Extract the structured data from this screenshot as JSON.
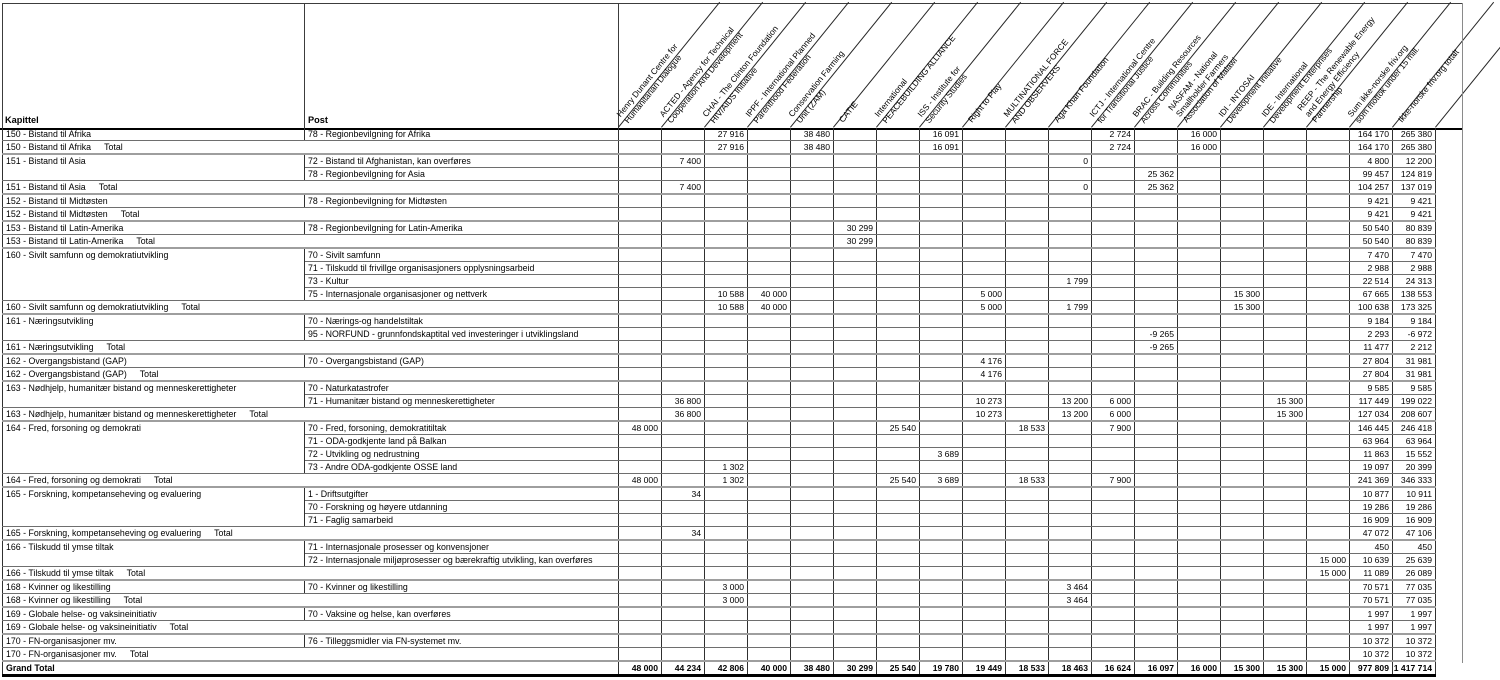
{
  "colors": {
    "background": "#ffffff",
    "text": "#000000",
    "grid_dark": "#303030",
    "row_line": "#6e6e6e",
    "group_line": "#9e9e9e",
    "heavy_line": "#000000"
  },
  "table": {
    "kapittel_header": "Kapittel",
    "post_header": "Post",
    "total_suffix": "Total",
    "grand_total_label": "Grand Total",
    "org_columns": [
      "Henry Dunant Centre for\nHumanitarian Dialogue",
      "ACTED - Agency for Technical\nCooperation And Development",
      "CHAI - The Clinton Foundation\nHIV/AIDS Initiative",
      "IPPF - International Planned\nParenthood Federation",
      "Conservation Farming\nUnit (ZAM)",
      "CATIE",
      "International\nPEACEBUILDING ALLIANCE",
      "ISS - Institute for\nSecurity Studies",
      "Right to Play",
      "MULTINATIONAL FORCE\nAND OBSERVERS",
      "Aga Khan Foundation",
      "ICTJ - International Centre\nfor Transitional Justice",
      "BRAC - Building Resources\nAcross Communities",
      "NASFAM - National\nSmallholder Farmers\nAssociation of Malawi",
      "IDI - INTOSAI\nDevelopment Initiative",
      "IDE - International\nDevelopment Enterprises",
      "REEP - The Renewable Energy\nand Energy Efficiency\nPartnership",
      "Sum ikke-norske friv.org\nsom mottok under 15 mill.",
      "Ikke-norske friv.org totalt"
    ],
    "rows": [
      {
        "type": "data",
        "kapittel": "150 - Bistand til Afrika",
        "rowspan": 1,
        "post": "78 - Regionbevilgning for Afrika",
        "values": {
          "2": "27 916",
          "4": "38 480",
          "7": "16 091",
          "11": "2 724",
          "13": "16 000",
          "17": "164 170",
          "18": "265 380"
        }
      },
      {
        "type": "total",
        "kapittel": "150 - Bistand til Afrika",
        "values": {
          "2": "27 916",
          "4": "38 480",
          "7": "16 091",
          "11": "2 724",
          "13": "16 000",
          "17": "164 170",
          "18": "265 380"
        }
      },
      {
        "type": "data",
        "kapittel": "151 - Bistand til Asia",
        "rowspan": 2,
        "post": "72 - Bistand til Afghanistan, kan overføres",
        "values": {
          "1": "7 400",
          "10": "0",
          "17": "4 800",
          "18": "12 200"
        }
      },
      {
        "type": "data",
        "post": "78 - Regionbevilgning for Asia",
        "values": {
          "12": "25 362",
          "17": "99 457",
          "18": "124 819"
        }
      },
      {
        "type": "total",
        "kapittel": "151 - Bistand til Asia",
        "values": {
          "1": "7 400",
          "10": "0",
          "12": "25 362",
          "17": "104 257",
          "18": "137 019"
        }
      },
      {
        "type": "data",
        "kapittel": "152 - Bistand til Midtøsten",
        "rowspan": 1,
        "post": "78 - Regionbevilgning for Midtøsten",
        "values": {
          "17": "9 421",
          "18": "9 421"
        }
      },
      {
        "type": "total",
        "kapittel": "152 - Bistand til Midtøsten",
        "values": {
          "17": "9 421",
          "18": "9 421"
        }
      },
      {
        "type": "data",
        "kapittel": "153 - Bistand til Latin-Amerika",
        "rowspan": 1,
        "post": "78 - Regionbevilgning for Latin-Amerika",
        "values": {
          "5": "30 299",
          "17": "50 540",
          "18": "80 839"
        }
      },
      {
        "type": "total",
        "kapittel": "153 - Bistand til Latin-Amerika",
        "values": {
          "5": "30 299",
          "17": "50 540",
          "18": "80 839"
        }
      },
      {
        "type": "data",
        "kapittel": "160 - Sivilt samfunn og demokratiutvikling",
        "rowspan": 4,
        "post": "70 - Sivilt samfunn",
        "values": {
          "17": "7 470",
          "18": "7 470"
        }
      },
      {
        "type": "data",
        "post": "71 - Tilskudd til frivillge organisasjoners opplysningsarbeid",
        "values": {
          "17": "2 988",
          "18": "2 988"
        }
      },
      {
        "type": "data",
        "post": "73 - Kultur",
        "values": {
          "10": "1 799",
          "17": "22 514",
          "18": "24 313"
        }
      },
      {
        "type": "data",
        "post": "75 - Internasjonale organisasjoner og nettverk",
        "values": {
          "2": "10 588",
          "3": "40 000",
          "8": "5 000",
          "14": "15 300",
          "17": "67 665",
          "18": "138 553"
        }
      },
      {
        "type": "total",
        "kapittel": "160 - Sivilt samfunn og demokratiutvikling",
        "values": {
          "2": "10 588",
          "3": "40 000",
          "8": "5 000",
          "10": "1 799",
          "14": "15 300",
          "17": "100 638",
          "18": "173 325"
        }
      },
      {
        "type": "data",
        "kapittel": "161 - Næringsutvikling",
        "rowspan": 2,
        "post": "70 - Nærings-og handelstiltak",
        "values": {
          "17": "9 184",
          "18": "9 184"
        }
      },
      {
        "type": "data",
        "post": "95 - NORFUND - grunnfondskaptital ved investeringer i utviklingsland",
        "values": {
          "12": "-9 265",
          "17": "2 293",
          "18": "-6 972"
        }
      },
      {
        "type": "total",
        "kapittel": "161 - Næringsutvikling",
        "values": {
          "12": "-9 265",
          "17": "11 477",
          "18": "2 212"
        }
      },
      {
        "type": "data",
        "kapittel": "162 - Overgangsbistand (GAP)",
        "rowspan": 1,
        "post": "70 - Overgangsbistand (GAP)",
        "values": {
          "8": "4 176",
          "17": "27 804",
          "18": "31 981"
        }
      },
      {
        "type": "total",
        "kapittel": "162 - Overgangsbistand (GAP)",
        "values": {
          "8": "4 176",
          "17": "27 804",
          "18": "31 981"
        }
      },
      {
        "type": "data",
        "kapittel": "163 - Nødhjelp, humanitær bistand og menneskerettigheter",
        "rowspan": 2,
        "post": "70 - Naturkatastrofer",
        "values": {
          "17": "9 585",
          "18": "9 585"
        }
      },
      {
        "type": "data",
        "post": "71 - Humanitær bistand og menneskerettigheter",
        "values": {
          "1": "36 800",
          "8": "10 273",
          "10": "13 200",
          "11": "6 000",
          "15": "15 300",
          "17": "117 449",
          "18": "199 022"
        }
      },
      {
        "type": "total",
        "kapittel": "163 - Nødhjelp, humanitær bistand og menneskerettigheter",
        "values": {
          "1": "36 800",
          "8": "10 273",
          "10": "13 200",
          "11": "6 000",
          "15": "15 300",
          "17": "127 034",
          "18": "208 607"
        }
      },
      {
        "type": "data",
        "kapittel": "164 - Fred, forsoning og demokrati",
        "rowspan": 4,
        "post": "70 - Fred, forsoning, demokratitiltak",
        "values": {
          "0": "48 000",
          "6": "25 540",
          "9": "18 533",
          "11": "7 900",
          "17": "146 445",
          "18": "246 418"
        }
      },
      {
        "type": "data",
        "post": "71 - ODA-godkjente land på Balkan",
        "values": {
          "17": "63 964",
          "18": "63 964"
        }
      },
      {
        "type": "data",
        "post": "72 - Utvikling og nedrustning",
        "values": {
          "7": "3 689",
          "17": "11 863",
          "18": "15 552"
        }
      },
      {
        "type": "data",
        "post": "73 - Andre ODA-godkjente OSSE land",
        "values": {
          "2": "1 302",
          "17": "19 097",
          "18": "20 399"
        }
      },
      {
        "type": "total",
        "kapittel": "164 - Fred, forsoning og demokrati",
        "values": {
          "0": "48 000",
          "2": "1 302",
          "6": "25 540",
          "7": "3 689",
          "9": "18 533",
          "11": "7 900",
          "17": "241 369",
          "18": "346 333"
        }
      },
      {
        "type": "data",
        "kapittel": "165 - Forskning, kompetanseheving og evaluering",
        "rowspan": 3,
        "post": "1 - Driftsutgifter",
        "values": {
          "1": "34",
          "17": "10 877",
          "18": "10 911"
        }
      },
      {
        "type": "data",
        "post": "70 - Forskning og høyere utdanning",
        "values": {
          "17": "19 286",
          "18": "19 286"
        }
      },
      {
        "type": "data",
        "post": "71 - Faglig samarbeid",
        "values": {
          "17": "16 909",
          "18": "16 909"
        }
      },
      {
        "type": "total",
        "kapittel": "165 - Forskning, kompetanseheving og evaluering",
        "values": {
          "1": "34",
          "17": "47 072",
          "18": "47 106"
        }
      },
      {
        "type": "data",
        "kapittel": "166 - Tilskudd til ymse tiltak",
        "rowspan": 2,
        "post": "71 - Internasjonale prosesser og konvensjoner",
        "values": {
          "17": "450",
          "18": "450"
        }
      },
      {
        "type": "data",
        "post": "72 - Internasjonale miljøprosesser og bærekraftig utvikling, kan overføres",
        "values": {
          "16": "15 000",
          "17": "10 639",
          "18": "25 639"
        }
      },
      {
        "type": "total",
        "kapittel": "166 - Tilskudd til ymse tiltak",
        "values": {
          "16": "15 000",
          "17": "11 089",
          "18": "26 089"
        }
      },
      {
        "type": "data",
        "kapittel": "168 - Kvinner og likestilling",
        "rowspan": 1,
        "post": "70 - Kvinner og likestilling",
        "values": {
          "2": "3 000",
          "10": "3 464",
          "17": "70 571",
          "18": "77 035"
        }
      },
      {
        "type": "total",
        "kapittel": "168 - Kvinner og likestilling",
        "values": {
          "2": "3 000",
          "10": "3 464",
          "17": "70 571",
          "18": "77 035"
        }
      },
      {
        "type": "data",
        "kapittel": "169 - Globale helse- og vaksineinitiativ",
        "rowspan": 1,
        "post": "70 - Vaksine og helse, kan overføres",
        "values": {
          "17": "1 997",
          "18": "1 997"
        }
      },
      {
        "type": "total",
        "kapittel": "169 - Globale helse- og vaksineinitiativ",
        "values": {
          "17": "1 997",
          "18": "1 997"
        }
      },
      {
        "type": "data",
        "kapittel": "170 - FN-organisasjoner mv.",
        "rowspan": 1,
        "post": "76 - Tilleggsmidler via FN-systemet mv.",
        "values": {
          "17": "10 372",
          "18": "10 372"
        }
      },
      {
        "type": "total",
        "kapittel": "170 - FN-organisasjoner mv.",
        "values": {
          "17": "10 372",
          "18": "10 372"
        }
      },
      {
        "type": "grand",
        "values": {
          "0": "48 000",
          "1": "44 234",
          "2": "42 806",
          "3": "40 000",
          "4": "38 480",
          "5": "30 299",
          "6": "25 540",
          "7": "19 780",
          "8": "19 449",
          "9": "18 533",
          "10": "18 463",
          "11": "16 624",
          "12": "16 097",
          "13": "16 000",
          "14": "15 300",
          "15": "15 300",
          "16": "15 000",
          "17": "977 809",
          "18": "1 417 714"
        }
      }
    ]
  }
}
